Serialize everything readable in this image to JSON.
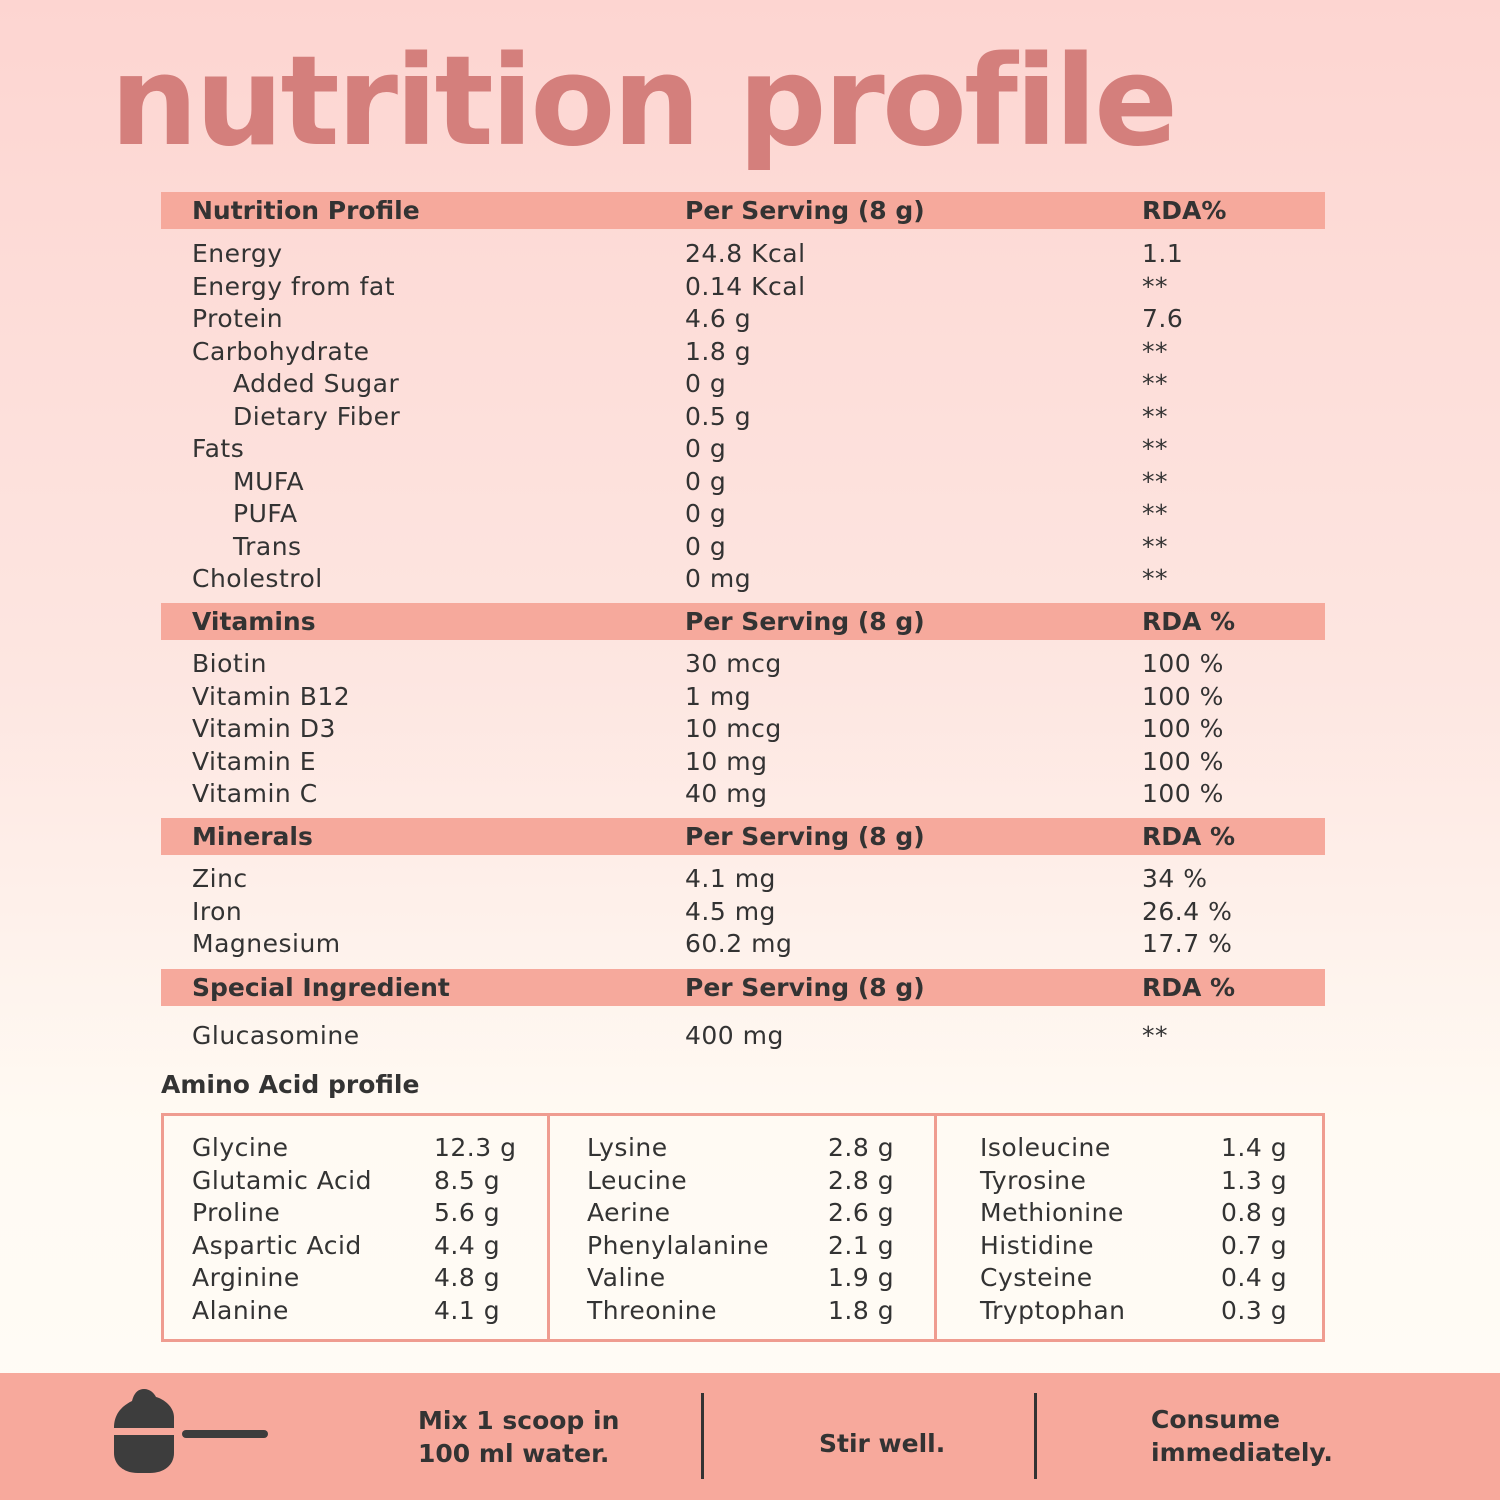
{
  "title": "nutrition profile",
  "colors": {
    "title": "#d47f7c",
    "header_bar": "#f6a99c",
    "bottom_bar": "#f7a99c",
    "text": "#333333"
  },
  "sections": [
    {
      "header": [
        "Nutrition Profile",
        "Per Serving (8 g)",
        "RDA%"
      ],
      "rows": [
        [
          "Energy",
          "24.8 Kcal",
          "1.1",
          0
        ],
        [
          "Energy from fat",
          "0.14 Kcal",
          "**",
          0
        ],
        [
          "Protein",
          "4.6 g",
          "7.6",
          0
        ],
        [
          "Carbohydrate",
          "1.8 g",
          "**",
          0
        ],
        [
          "Added Sugar",
          "0 g",
          "**",
          1
        ],
        [
          "Dietary Fiber",
          "0.5 g",
          "**",
          1
        ],
        [
          "Fats",
          "0 g",
          "**",
          0
        ],
        [
          "MUFA",
          "0 g",
          "**",
          1
        ],
        [
          "PUFA",
          "0 g",
          "**",
          1
        ],
        [
          "Trans",
          "0 g",
          "**",
          1
        ],
        [
          "Cholestrol",
          "0 mg",
          "**",
          0
        ]
      ]
    },
    {
      "header": [
        "Vitamins",
        "Per Serving (8 g)",
        "RDA %"
      ],
      "rows": [
        [
          "Biotin",
          "30 mcg",
          "100 %",
          0
        ],
        [
          "Vitamin B12",
          "1 mg",
          "100 %",
          0
        ],
        [
          "Vitamin D3",
          "10 mcg",
          "100 %",
          0
        ],
        [
          "Vitamin E",
          "10 mg",
          "100 %",
          0
        ],
        [
          "Vitamin C",
          "40 mg",
          "100 %",
          0
        ]
      ]
    },
    {
      "header": [
        "Minerals",
        "Per Serving (8 g)",
        "RDA %"
      ],
      "rows": [
        [
          "Zinc",
          "4.1 mg",
          "34 %",
          0
        ],
        [
          "Iron",
          "4.5 mg",
          "26.4 %",
          0
        ],
        [
          "Magnesium",
          "60.2 mg",
          "17.7 %",
          0
        ]
      ]
    },
    {
      "header": [
        "Special Ingredient",
        "Per Serving (8 g)",
        "RDA %"
      ],
      "rows": [
        [
          "Glucasomine",
          "400 mg",
          "**",
          0
        ]
      ]
    }
  ],
  "amino": {
    "title": "Amino Acid profile",
    "columns": [
      [
        [
          "Glycine",
          "12.3 g"
        ],
        [
          "Glutamic Acid",
          "8.5 g"
        ],
        [
          "Proline",
          "5.6 g"
        ],
        [
          "Aspartic Acid",
          "4.4 g"
        ],
        [
          "Arginine",
          "4.8 g"
        ],
        [
          "Alanine",
          "4.1 g"
        ]
      ],
      [
        [
          "Lysine",
          "2.8 g"
        ],
        [
          "Leucine",
          "2.8 g"
        ],
        [
          "Aerine",
          "2.6 g"
        ],
        [
          "Phenylalanine",
          "2.1 g"
        ],
        [
          "Valine",
          "1.9 g"
        ],
        [
          "Threonine",
          "1.8 g"
        ]
      ],
      [
        [
          "Isoleucine",
          "1.4 g"
        ],
        [
          "Tyrosine",
          "1.3 g"
        ],
        [
          "Methionine",
          "0.8 g"
        ],
        [
          "Histidine",
          "0.7 g"
        ],
        [
          "Cysteine",
          "0.4 g"
        ],
        [
          "Tryptophan",
          "0.3 g"
        ]
      ]
    ]
  },
  "steps": {
    "icon": "scoop-icon",
    "step1": [
      "Mix 1 scoop in",
      "100 ml water."
    ],
    "step2": "Stir well.",
    "step3": [
      "Consume",
      "immediately."
    ]
  }
}
